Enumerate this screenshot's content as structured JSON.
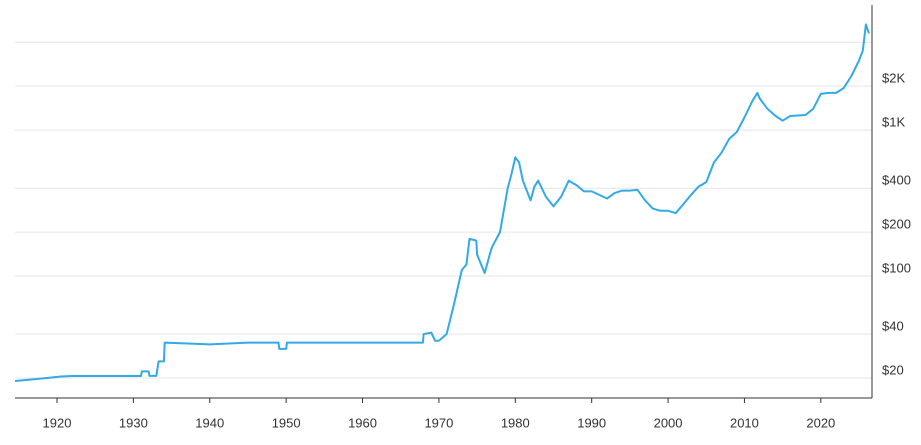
{
  "chart_data": {
    "type": "line",
    "log_y": true,
    "grid": true,
    "y_axis_side": "right",
    "xlim": [
      1914.5,
      2026.7
    ],
    "ylim": [
      14.6,
      7200
    ],
    "xticks": [
      1920,
      1930,
      1940,
      1950,
      1960,
      1970,
      1980,
      1990,
      2000,
      2010,
      2020
    ],
    "yticks": [
      {
        "value": 20,
        "label": "$20"
      },
      {
        "value": 40,
        "label": "$40"
      },
      {
        "value": 100,
        "label": "$100"
      },
      {
        "value": 200,
        "label": "$200"
      },
      {
        "value": 400,
        "label": "$400"
      },
      {
        "value": 1000,
        "label": "$1K"
      },
      {
        "value": 2000,
        "label": "$2K"
      }
    ],
    "ygrid": [
      20,
      40,
      100,
      200,
      400,
      1000,
      2000,
      4000
    ],
    "x": [
      1914.5,
      1917,
      1919,
      1920.5,
      1922,
      1925,
      1930,
      1931,
      1931.1,
      1932,
      1932.1,
      1933,
      1933.3,
      1934,
      1934.1,
      1940,
      1945,
      1949,
      1949.1,
      1950,
      1950.1,
      1955,
      1960,
      1967.9,
      1968,
      1969,
      1969.5,
      1970,
      1971,
      1972,
      1973,
      1973.6,
      1974,
      1974.9,
      1975,
      1976,
      1976.8,
      1977,
      1978,
      1979,
      1979.5,
      1980,
      1980.5,
      1981,
      1982,
      1982.5,
      1983,
      1984,
      1985,
      1986,
      1987,
      1988,
      1989,
      1990,
      1991,
      1992,
      1993,
      1994,
      1995,
      1996,
      1997,
      1998,
      1999,
      2000,
      2001,
      2002,
      2003,
      2004,
      2005,
      2006,
      2007,
      2008,
      2009,
      2010,
      2011,
      2011.7,
      2012,
      2013,
      2014,
      2015,
      2016,
      2017,
      2018,
      2019,
      2020,
      2021,
      2022,
      2023,
      2024,
      2025,
      2025.5,
      2025.9,
      2026.3
    ],
    "series": [
      {
        "color": "#33a9e6",
        "values": [
          19.1,
          19.6,
          20.1,
          20.5,
          20.67,
          20.67,
          20.67,
          20.67,
          22.2,
          22.2,
          20.7,
          20.7,
          26,
          26,
          35,
          34,
          35,
          35,
          31.7,
          31.7,
          35,
          35,
          35,
          35,
          40,
          41,
          36,
          36,
          40,
          65,
          110,
          120,
          180,
          175,
          140,
          105,
          150,
          160,
          200,
          400,
          500,
          650,
          600,
          450,
          330,
          410,
          450,
          350,
          300,
          350,
          450,
          420,
          380,
          380,
          360,
          340,
          370,
          385,
          385,
          390,
          330,
          290,
          280,
          280,
          270,
          310,
          360,
          410,
          440,
          600,
          700,
          870,
          970,
          1220,
          1570,
          1800,
          1650,
          1400,
          1260,
          1160,
          1250,
          1260,
          1270,
          1400,
          1770,
          1800,
          1800,
          1940,
          2350,
          3000,
          3500,
          5300,
          4600
        ]
      }
    ]
  }
}
